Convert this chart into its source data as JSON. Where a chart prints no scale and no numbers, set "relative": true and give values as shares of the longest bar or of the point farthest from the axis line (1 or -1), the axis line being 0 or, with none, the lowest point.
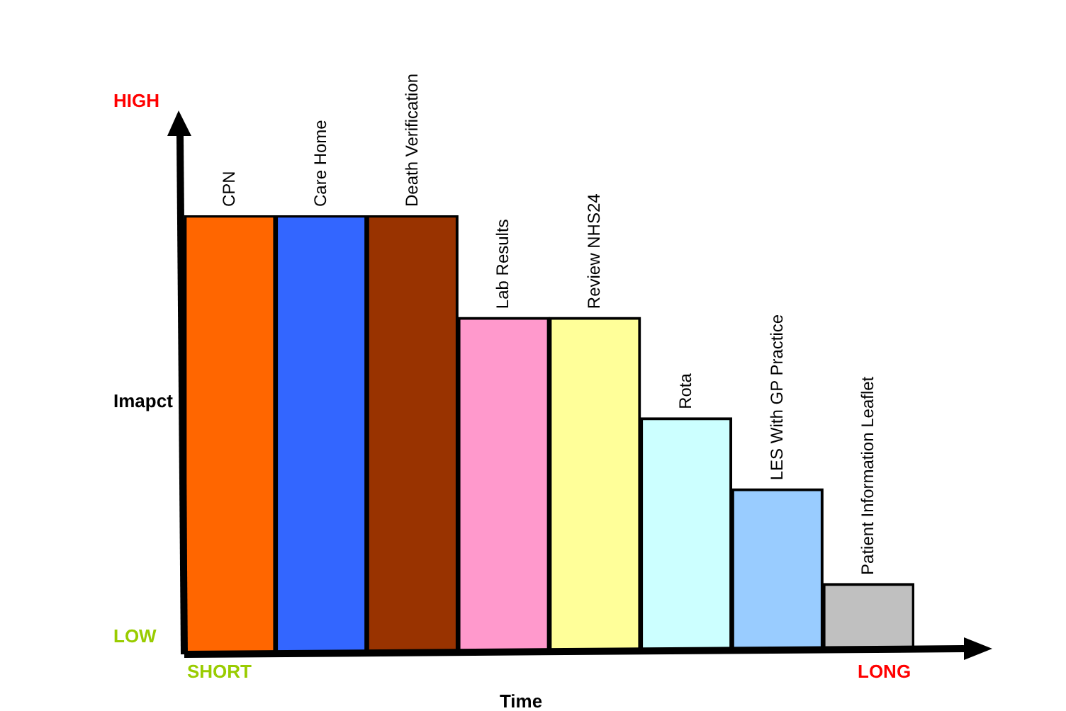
{
  "chart_data": {
    "type": "bar",
    "relative": true,
    "xlabel": "Time",
    "ylabel": "Imapct",
    "categories": [
      "CPN",
      "Care Home",
      "Death Verification",
      "Lab Results",
      "Review NHS24",
      "Rota",
      "LES With GP Practice",
      "Patient Information Leaflet"
    ],
    "values": [
      1,
      1,
      1,
      0.766,
      0.766,
      0.536,
      0.373,
      0.156
    ],
    "colors": [
      "#ff6600",
      "#3366ff",
      "#993300",
      "#ff99cc",
      "#ffff99",
      "#ccffff",
      "#99ccff",
      "#c0c0c0"
    ],
    "annotations": [
      "HIGH",
      "LOW",
      "SHORT",
      "LONG"
    ]
  }
}
